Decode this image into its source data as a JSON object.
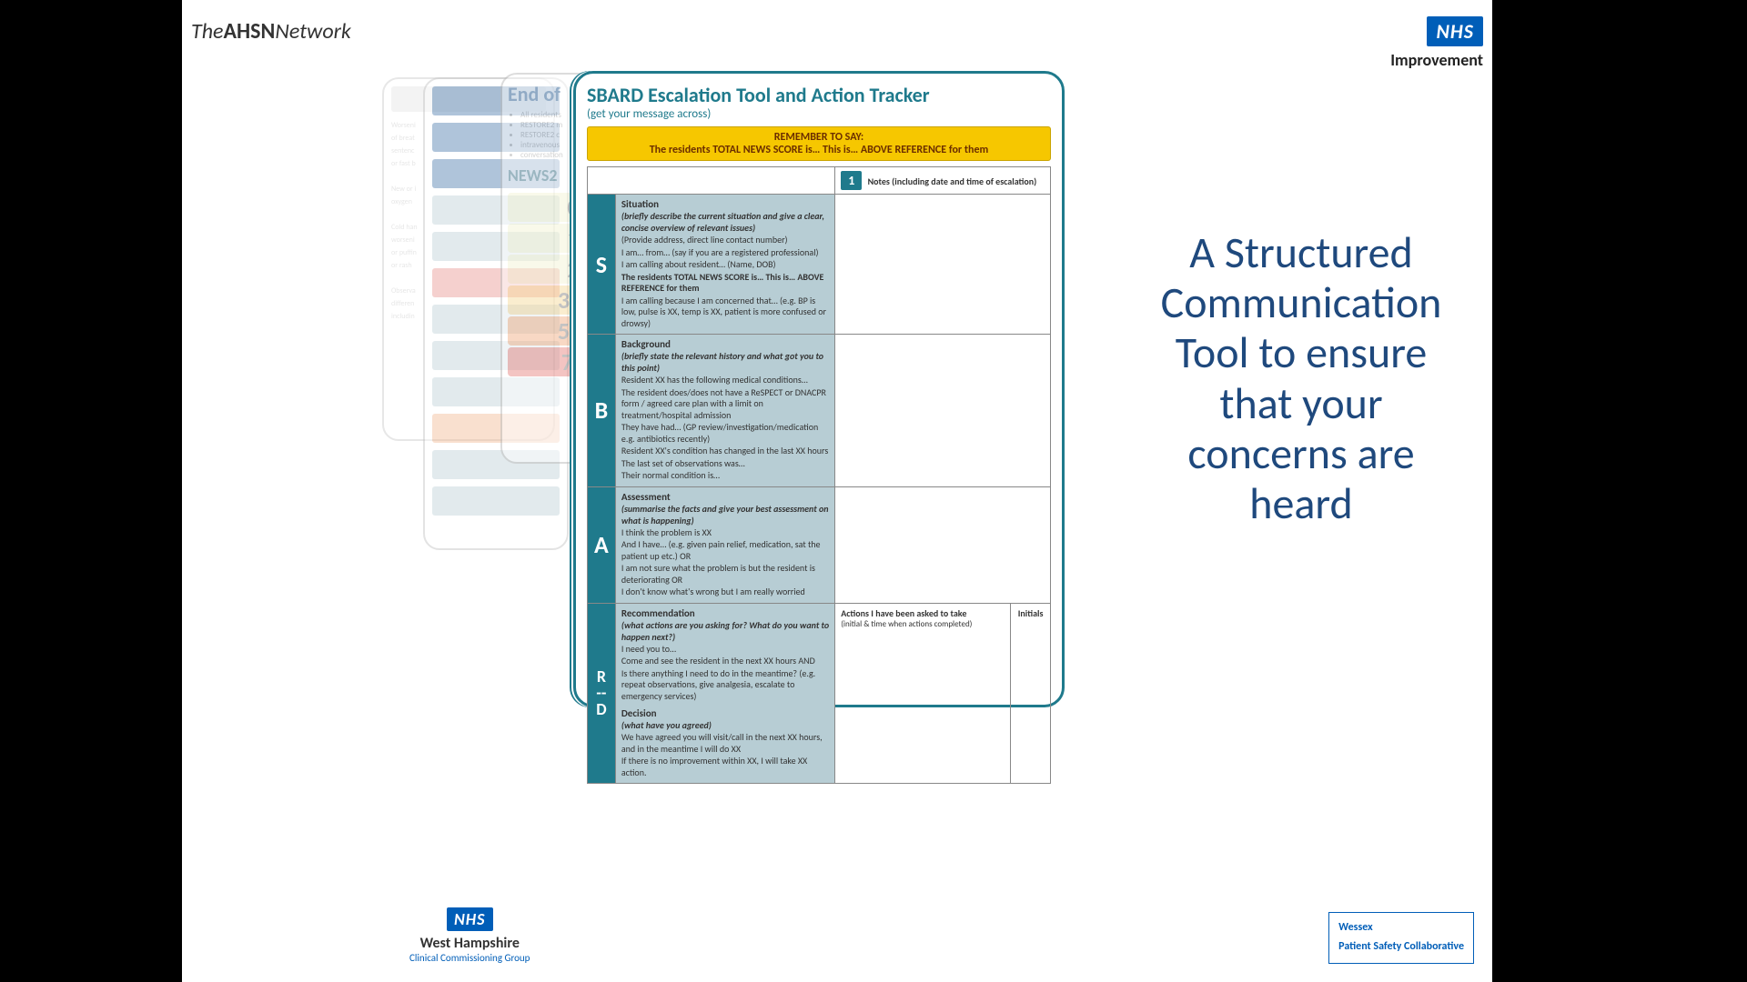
{
  "header": {
    "ahsn_the": "The",
    "ahsn_bold": "AHSN",
    "ahsn_net": "Network",
    "nhs": "NHS",
    "nhs_sub": "Improvement"
  },
  "caption": "A Structured Communication Tool to ensure that your concerns are heard",
  "wh": {
    "nhs": "NHS",
    "l1": "West Hampshire",
    "l2": "Clinical Commissioning Group"
  },
  "wessex": {
    "l1": "Wessex",
    "l2": "Patient Safety Collaborative"
  },
  "ghost3": {
    "title": "End of",
    "bullets": [
      "All residents",
      "RESTORE2 m",
      "RESTORE2 c",
      "intravenous",
      "conversation"
    ],
    "news": "NEWS2",
    "scores": [
      {
        "label": "0",
        "bg": "#f4f4d7"
      },
      {
        "label": "1",
        "bg": "#f4f4d7"
      },
      {
        "label": "2",
        "bg": "#f4f4d7"
      },
      {
        "label": "3-4",
        "bg": "#f7dca0"
      },
      {
        "label": "5-6",
        "bg": "#f2b38a"
      },
      {
        "label": "7+",
        "bg": "#e88b87"
      }
    ]
  },
  "ghost1": {
    "lines": [
      "Worseni",
      "of breat",
      "sentenc",
      "or fast b",
      "",
      "New or i",
      "oxygen",
      "",
      "Cold han",
      "worseni",
      "or puffin",
      "or rash",
      "",
      "Observa",
      "differen",
      "includin"
    ]
  },
  "ghost2": {
    "chips": [
      {
        "bg": "#3a6ea5"
      },
      {
        "bg": "#3a6ea5"
      },
      {
        "bg": "#3a6ea5"
      },
      {
        "bg": "#b7cdd4"
      },
      {
        "bg": "#b7cdd4"
      },
      {
        "bg": "#e88b87"
      },
      {
        "bg": "#b7cdd4"
      },
      {
        "bg": "#b7cdd4"
      },
      {
        "bg": "#b7cdd4"
      },
      {
        "bg": "#f2b38a"
      },
      {
        "bg": "#b7cdd4"
      },
      {
        "bg": "#b7cdd4"
      }
    ]
  },
  "card": {
    "title": "SBARD Escalation Tool and Action Tracker",
    "subtitle": "(get your message across)",
    "remember_h": "REMEMBER TO SAY:",
    "remember_b": "The residents TOTAL NEWS SCORE is… This is… ABOVE REFERENCE for them",
    "number": "1",
    "notes_head": "Notes (including date and time of escalation)",
    "actions_h": "Actions I have been asked to take",
    "actions_s": "(initial & time when actions completed)",
    "initials": "Initials",
    "s": {
      "letter": "S",
      "title": "Situation",
      "hint": "(briefly describe the current situation and give a clear, concise overview of relevant issues)",
      "lines": [
        "(Provide address, direct line contact number)",
        "I am… from… (say if you are a registered professional)",
        "I am calling about resident… (Name, DOB)",
        "The residents TOTAL NEWS SCORE is… This is… ABOVE REFERENCE for them",
        "I am calling because I am concerned that… (e.g. BP is low, pulse is XX, temp is XX, patient is more confused or drowsy)"
      ]
    },
    "b": {
      "letter": "B",
      "title": "Background",
      "hint": "(briefly state the relevant history and what got you to this point)",
      "lines": [
        "Resident XX has the following medical conditions…",
        "The resident does/does not have a ReSPECT or DNACPR form / agreed care plan with a limit on treatment/hospital admission",
        "They have had… (GP review/investigation/medication e.g. antibiotics recently)",
        "Resident XX's condition has changed in the last XX hours",
        "The last set of observations was…",
        "Their normal condition is…"
      ]
    },
    "a": {
      "letter": "A",
      "title": "Assessment",
      "hint": "(summarise the facts and give your best assessment on what is happening)",
      "lines": [
        "I think the problem is XX",
        "And I have… (e.g. given pain relief, medication, sat the patient up etc.) OR",
        "I am not sure what the problem is but the resident is deteriorating OR",
        "I don't know what's wrong but I am really worried"
      ]
    },
    "r": {
      "letter": "R",
      "title": "Recommendation",
      "hint": "(what actions are you asking for? What do you want to happen next?)",
      "lines": [
        "I need you to…",
        "Come and see the resident in the next XX hours AND",
        "Is there anything I need to do in the meantime? (e.g. repeat observations, give analgesia, escalate to emergency services)"
      ]
    },
    "d": {
      "letter": "D",
      "dashes": "--",
      "title": "Decision",
      "hint": "(what have you agreed)",
      "lines": [
        "We have agreed you will visit/call in the next XX hours, and in the meantime I will do XX",
        "If there is no improvement within XX, I will take XX action."
      ]
    }
  },
  "colors": {
    "teal": "#1f7a8c",
    "section_bg": "#b7cdd4",
    "yellow": "#f6c700",
    "nhs_blue": "#005eb8",
    "caption": "#1f497d"
  }
}
